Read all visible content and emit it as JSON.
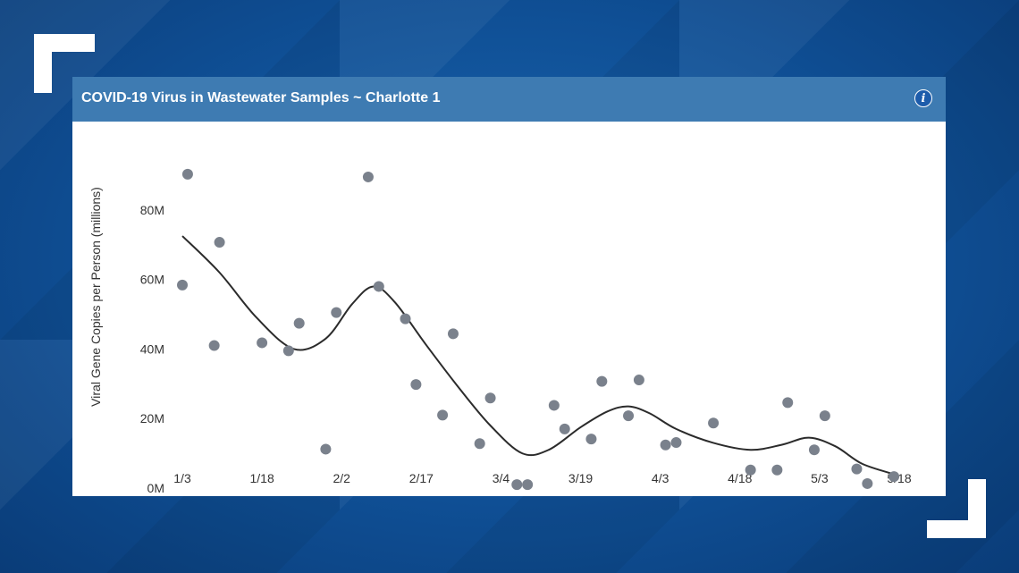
{
  "header": {
    "title": "COVID-19 Virus in Wastewater Samples ~ Charlotte 1",
    "info_icon": "info-icon",
    "info_glyph": "i"
  },
  "colors": {
    "header_bg": "#3e7bb2",
    "point": "#7a818c",
    "trend": "#2b2b2b"
  },
  "chart_data": {
    "type": "scatter",
    "title": "COVID-19 Virus in Wastewater Samples ~ Charlotte 1",
    "xlabel": "",
    "ylabel": "Viral Gene Copies per Person (millions)",
    "x_ticks": [
      "1/3",
      "1/18",
      "2/2",
      "2/17",
      "3/4",
      "3/19",
      "4/3",
      "4/18",
      "5/3",
      "5/18"
    ],
    "y_ticks": [
      {
        "value": 0,
        "label": "0M"
      },
      {
        "value": 20,
        "label": "20M"
      },
      {
        "value": 40,
        "label": "40M"
      },
      {
        "value": 60,
        "label": "60M"
      },
      {
        "value": 80,
        "label": "80M"
      }
    ],
    "xlim": [
      0,
      135
    ],
    "ylim": [
      0,
      90
    ],
    "grid": false,
    "legend": "none",
    "series": [
      {
        "points": [
          {
            "x": 0,
            "y": 58.4
          },
          {
            "x": 1,
            "y": 90.3
          },
          {
            "x": 6,
            "y": 41
          },
          {
            "x": 7,
            "y": 70.7
          },
          {
            "x": 15,
            "y": 41.8
          },
          {
            "x": 20,
            "y": 39.5
          },
          {
            "x": 22,
            "y": 47.4
          },
          {
            "x": 27,
            "y": 11.2
          },
          {
            "x": 29,
            "y": 50.5
          },
          {
            "x": 35,
            "y": 89.5
          },
          {
            "x": 37,
            "y": 58
          },
          {
            "x": 42,
            "y": 48.7
          },
          {
            "x": 44,
            "y": 29.8
          },
          {
            "x": 49,
            "y": 21
          },
          {
            "x": 51,
            "y": 44.4
          },
          {
            "x": 56,
            "y": 12.8
          },
          {
            "x": 58,
            "y": 25.9
          },
          {
            "x": 63,
            "y": 1
          },
          {
            "x": 65,
            "y": 1
          },
          {
            "x": 70,
            "y": 23.8
          },
          {
            "x": 72,
            "y": 17
          },
          {
            "x": 77,
            "y": 14.1
          },
          {
            "x": 79,
            "y": 30.7
          },
          {
            "x": 84,
            "y": 20.8
          },
          {
            "x": 86,
            "y": 31.1
          },
          {
            "x": 91,
            "y": 12.4
          },
          {
            "x": 93,
            "y": 13.1
          },
          {
            "x": 100,
            "y": 18.7
          },
          {
            "x": 107,
            "y": 5.2
          },
          {
            "x": 112,
            "y": 5.2
          },
          {
            "x": 114,
            "y": 24.6
          },
          {
            "x": 119,
            "y": 11
          },
          {
            "x": 121,
            "y": 20.8
          },
          {
            "x": 127,
            "y": 5.5
          },
          {
            "x": 129,
            "y": 1.3
          },
          {
            "x": 134,
            "y": 3.3
          }
        ]
      }
    ],
    "trend_line": [
      {
        "x": 0,
        "y": 72.5
      },
      {
        "x": 7,
        "y": 62
      },
      {
        "x": 14,
        "y": 49
      },
      {
        "x": 21,
        "y": 40
      },
      {
        "x": 27,
        "y": 43
      },
      {
        "x": 32,
        "y": 53
      },
      {
        "x": 36,
        "y": 58
      },
      {
        "x": 40,
        "y": 53.5
      },
      {
        "x": 46,
        "y": 41
      },
      {
        "x": 52,
        "y": 29
      },
      {
        "x": 58,
        "y": 18
      },
      {
        "x": 64,
        "y": 10
      },
      {
        "x": 69,
        "y": 11
      },
      {
        "x": 75,
        "y": 17.5
      },
      {
        "x": 80,
        "y": 22
      },
      {
        "x": 84,
        "y": 23.5
      },
      {
        "x": 88,
        "y": 21.5
      },
      {
        "x": 93,
        "y": 17
      },
      {
        "x": 100,
        "y": 13
      },
      {
        "x": 107,
        "y": 11
      },
      {
        "x": 113,
        "y": 12.5
      },
      {
        "x": 118,
        "y": 14.5
      },
      {
        "x": 123,
        "y": 12
      },
      {
        "x": 128,
        "y": 7
      },
      {
        "x": 134,
        "y": 4
      }
    ]
  }
}
